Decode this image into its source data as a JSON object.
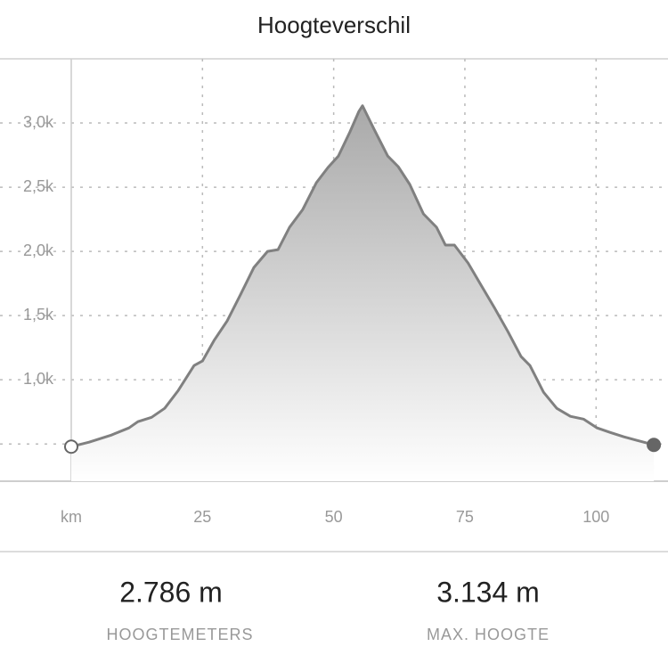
{
  "header": {
    "title": "Hoogteverschil"
  },
  "chart_data": {
    "type": "area",
    "x": [
      0,
      3.4,
      7.6,
      11,
      12.7,
      15.3,
      17.8,
      20.4,
      23.4,
      25,
      27.2,
      29.7,
      32.3,
      34.8,
      37.4,
      39.4,
      41.6,
      44.1,
      46.7,
      48.9,
      50.9,
      53.1,
      54.8,
      55.5,
      57.7,
      60.3,
      62.3,
      64.5,
      67.1,
      69.6,
      71.3,
      73,
      75.6,
      78.1,
      80.6,
      83.2,
      85.7,
      87.4,
      90,
      92.5,
      95.1,
      97.6,
      100.2,
      102.7,
      105.3,
      107.8,
      111
    ],
    "series": [
      {
        "color": "#808080",
        "values": [
          479,
          514,
          569,
          625,
          674,
          708,
          778,
          917,
          1111,
          1146,
          1306,
          1458,
          1667,
          1875,
          2000,
          2014,
          2188,
          2326,
          2535,
          2653,
          2743,
          2931,
          3090,
          3134,
          2951,
          2743,
          2660,
          2521,
          2292,
          2188,
          2049,
          2049,
          1910,
          1736,
          1563,
          1375,
          1181,
          1111,
          903,
          778,
          715,
          694,
          625,
          590,
          556,
          528,
          493
        ]
      }
    ],
    "xlim": [
      0,
      113.7
    ],
    "xticks": [
      {
        "value": 0,
        "label": "km"
      },
      25,
      50,
      75,
      100
    ],
    "ylim": [
      210,
      3500
    ],
    "yticks": [
      {
        "value": 500,
        "label": null
      },
      {
        "value": 1000,
        "label": "1,0k"
      },
      {
        "value": 1500,
        "label": "1,5k"
      },
      {
        "value": 2000,
        "label": "2,0k"
      },
      {
        "value": 2500,
        "label": "2,5k"
      },
      {
        "value": 3000,
        "label": "3,0k"
      }
    ],
    "grid": true
  },
  "stats": [
    {
      "value": "2.786 m",
      "label": "HOOGTEMETERS"
    },
    {
      "value": "3.134 m",
      "label": "MAX. HOOGTE"
    }
  ]
}
